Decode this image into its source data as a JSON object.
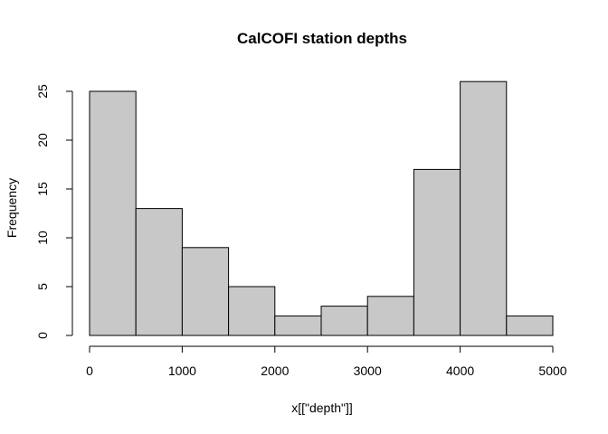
{
  "chart_data": {
    "type": "bar",
    "title": "CalCOFI station depths",
    "xlabel": "x[[\"depth\"]]",
    "ylabel": "Frequency",
    "bins": [
      {
        "start": 0,
        "end": 500,
        "count": 25
      },
      {
        "start": 500,
        "end": 1000,
        "count": 13
      },
      {
        "start": 1000,
        "end": 1500,
        "count": 9
      },
      {
        "start": 1500,
        "end": 2000,
        "count": 5
      },
      {
        "start": 2000,
        "end": 2500,
        "count": 2
      },
      {
        "start": 2500,
        "end": 3000,
        "count": 3
      },
      {
        "start": 3000,
        "end": 3500,
        "count": 4
      },
      {
        "start": 3500,
        "end": 4000,
        "count": 17
      },
      {
        "start": 4000,
        "end": 4500,
        "count": 26
      },
      {
        "start": 4500,
        "end": 5000,
        "count": 2
      }
    ],
    "xlim": [
      0,
      5000
    ],
    "ylim": [
      0,
      26
    ],
    "xticks": [
      0,
      1000,
      2000,
      3000,
      4000,
      5000
    ],
    "yticks": [
      0,
      5,
      10,
      15,
      20,
      25
    ],
    "bar_color": "#c8c8c8",
    "grid": false,
    "legend": "none"
  }
}
